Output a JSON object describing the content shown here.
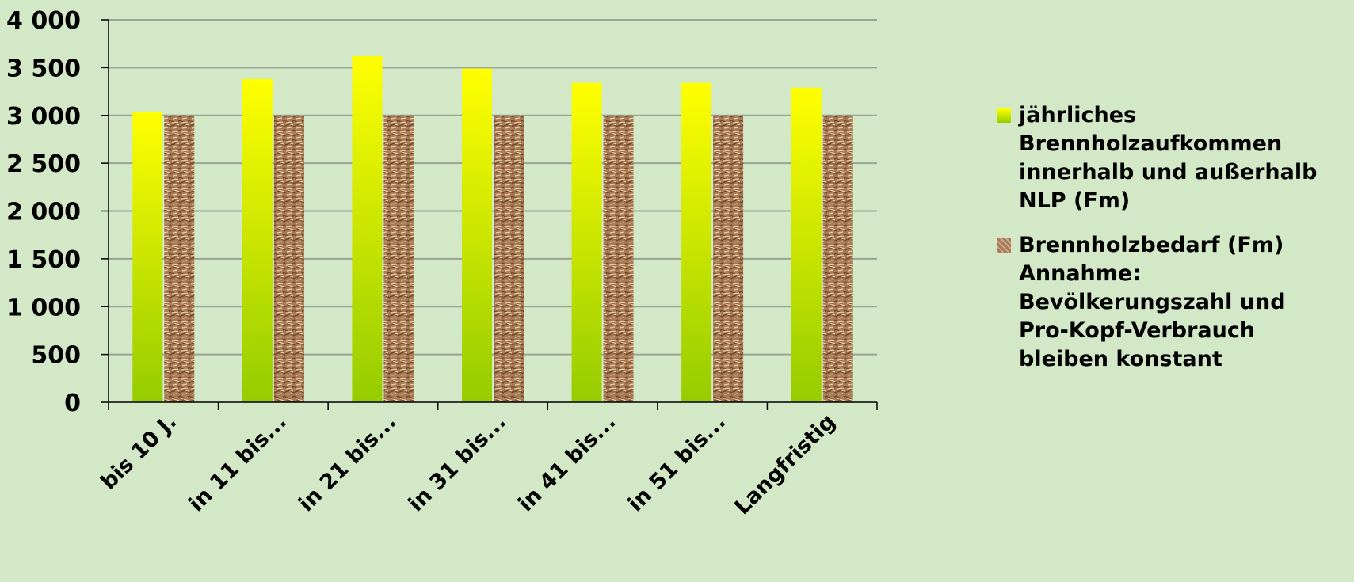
{
  "colors": {
    "background": "#d3e8c6",
    "gridline": "#9aa596",
    "series1_top": "#ffff00",
    "series1_bottom": "#95cc00",
    "series2_base": "#a97a55",
    "series2_dark": "#6e4a2b",
    "series2_light": "#e8cfa6"
  },
  "chart_data": {
    "type": "bar",
    "title": "",
    "xlabel": "",
    "ylabel": "",
    "ylim": [
      0,
      4000
    ],
    "yticks": [
      0,
      500,
      1000,
      1500,
      2000,
      2500,
      3000,
      3500,
      4000
    ],
    "ytick_labels": [
      "0",
      "500",
      "1 000",
      "1 500",
      "2 000",
      "2 500",
      "3 000",
      "3 500",
      "4 000"
    ],
    "grid": true,
    "legend_position": "right",
    "categories": [
      "bis 10 J.",
      "in 11 bis...",
      "in 21 bis...",
      "in 31 bis...",
      "in 41 bis...",
      "in 51 bis...",
      "Langfristig"
    ],
    "series": [
      {
        "name": "jährliches\nBrennholzaufkommen\ninnerhalb und außerhalb\nNLP (Fm)",
        "values": [
          3040,
          3380,
          3620,
          3490,
          3340,
          3340,
          3290
        ]
      },
      {
        "name": "Brennholzbedarf (Fm)\nAnnahme:\nBevölkerungszahl und\nPro-Kopf-Verbrauch\nbleiben konstant",
        "values": [
          3000,
          3000,
          3000,
          3000,
          3000,
          3000,
          3000
        ]
      }
    ]
  }
}
